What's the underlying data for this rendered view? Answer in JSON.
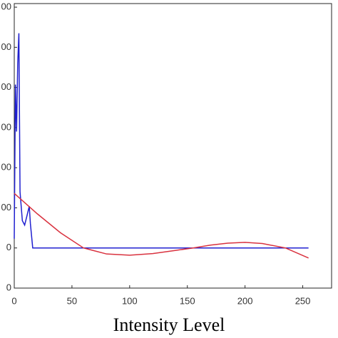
{
  "chart_data": {
    "type": "line",
    "x_label": "Intensity Level",
    "xlim": [
      0,
      275
    ],
    "xticks": [
      0,
      50,
      100,
      150,
      200,
      250
    ],
    "ylim": [
      -100,
      609
    ],
    "yticks": [
      {
        "value": -100,
        "label": "0"
      },
      {
        "value": 0,
        "label": "0"
      },
      {
        "value": 100,
        "label": "00"
      },
      {
        "value": 200,
        "label": "00"
      },
      {
        "value": 300,
        "label": "00"
      },
      {
        "value": 400,
        "label": "00"
      },
      {
        "value": 500,
        "label": "00"
      },
      {
        "value": 600,
        "label": "00"
      }
    ],
    "series": [
      {
        "color": "#2020d0",
        "x": [
          0,
          1,
          2,
          3,
          4,
          5,
          7,
          9,
          11,
          13,
          14,
          16,
          20,
          100,
          200,
          255
        ],
        "values": [
          23,
          407,
          290,
          460,
          535,
          140,
          68,
          57,
          80,
          104,
          60,
          0,
          0,
          0,
          0,
          0
        ]
      },
      {
        "color": "#d9323f",
        "x": [
          0,
          20,
          40,
          60,
          80,
          100,
          120,
          140,
          155,
          170,
          185,
          200,
          215,
          235,
          255
        ],
        "values": [
          136,
          85,
          38,
          0,
          -15,
          -18,
          -14,
          -6,
          0,
          7,
          12,
          14,
          11,
          0,
          -25
        ]
      }
    ]
  }
}
